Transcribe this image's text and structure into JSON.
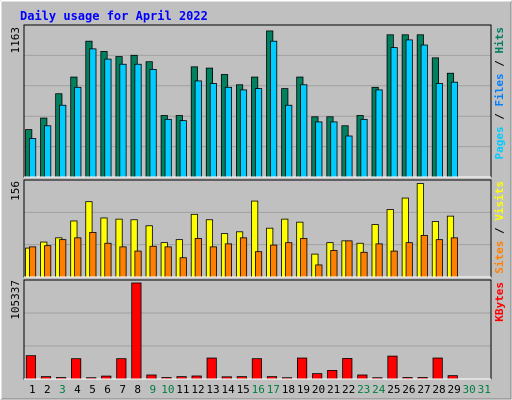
{
  "chart_data": [
    {
      "type": "bar",
      "title": "Daily usage for April 2022",
      "categories": [
        "1",
        "2",
        "3",
        "4",
        "5",
        "6",
        "7",
        "8",
        "9",
        "10",
        "11",
        "12",
        "13",
        "14",
        "15",
        "16",
        "17",
        "18",
        "19",
        "20",
        "21",
        "22",
        "23",
        "24",
        "25",
        "26",
        "27",
        "28",
        "29",
        "30",
        "31"
      ],
      "category_colors": [
        "#000000",
        "#000000",
        "#008040",
        "#000000",
        "#000000",
        "#000000",
        "#000000",
        "#000000",
        "#008040",
        "#008040",
        "#000000",
        "#000000",
        "#000000",
        "#000000",
        "#000000",
        "#008040",
        "#008040",
        "#000000",
        "#000000",
        "#000000",
        "#000000",
        "#000000",
        "#008040",
        "#008040",
        "#000000",
        "#000000",
        "#000000",
        "#000000",
        "#000000",
        "#008040",
        "#008040"
      ],
      "panels": [
        {
          "ymax_label": "1163",
          "ymax": 1163,
          "series": [
            {
              "name": "Hits",
              "color": "#00805f",
              "values": [
                370,
                460,
                650,
                780,
                1060,
                980,
                940,
                950,
                900,
                480,
                480,
                860,
                850,
                800,
                720,
                780,
                1140,
                690,
                780,
                470,
                470,
                400,
                480,
                700,
                1110,
                1110,
                1110,
                930,
                810,
                0,
                0
              ]
            },
            {
              "name": "Files",
              "color": "#00ccff",
              "values": [
                300,
                400,
                560,
                700,
                1000,
                920,
                880,
                880,
                840,
                450,
                440,
                750,
                730,
                700,
                680,
                690,
                1060,
                560,
                720,
                430,
                430,
                320,
                450,
                680,
                1010,
                1070,
                1030,
                730,
                740,
                0,
                0
              ]
            },
            {
              "name": "Pages",
              "color": "#00ccff",
              "values": []
            }
          ]
        },
        {
          "ymax_label": "156",
          "ymax": 156,
          "series": [
            {
              "name": "Visits",
              "color": "#ffff00",
              "values": [
                48,
                58,
                65,
                93,
                125,
                98,
                96,
                95,
                85,
                57,
                62,
                104,
                95,
                72,
                75,
                126,
                81,
                96,
                91,
                38,
                57,
                60,
                56,
                87,
                112,
                131,
                155,
                92,
                101,
                0,
                0
              ]
            },
            {
              "name": "Sites",
              "color": "#ff8000",
              "values": [
                50,
                52,
                62,
                65,
                74,
                56,
                50,
                43,
                51,
                50,
                32,
                64,
                50,
                55,
                65,
                42,
                53,
                57,
                64,
                20,
                44,
                60,
                41,
                55,
                43,
                57,
                69,
                62,
                65,
                0,
                0
              ]
            }
          ]
        },
        {
          "ymax_label": "105337",
          "ymax": 105337,
          "series": [
            {
              "name": "KBytes",
              "color": "#ff0000",
              "values": [
                25600,
                2600,
                1600,
                22300,
                1400,
                3200,
                22300,
                105337,
                4400,
                1600,
                2600,
                3300,
                23000,
                2400,
                2600,
                22300,
                2600,
                1400,
                23000,
                5900,
                9400,
                22500,
                4400,
                1400,
                25100,
                1600,
                1600,
                23000,
                3700,
                0,
                0
              ]
            }
          ]
        }
      ]
    }
  ]
}
